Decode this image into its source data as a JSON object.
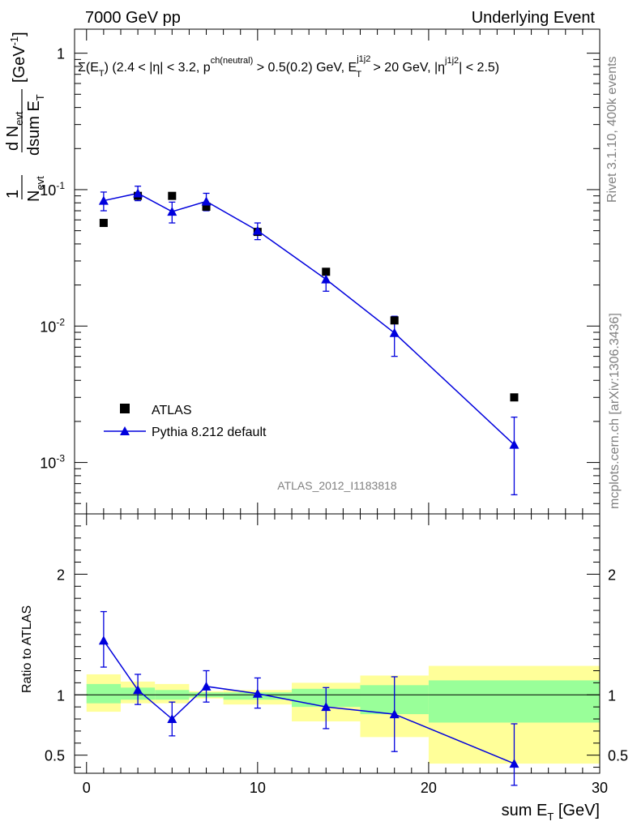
{
  "header": {
    "left": "7000 GeV pp",
    "right": "Underlying Event"
  },
  "side_text": {
    "rivet": "Rivet 3.1.10,  400k events",
    "mcplots": "mcplots.cern.ch [arXiv:1306.3436]"
  },
  "watermark": "ATLAS_2012_I1183818",
  "colors": {
    "mc_line": "#0000dd",
    "data_marker": "#000000",
    "band_outer": "#ffff99",
    "band_inner": "#99ff99"
  },
  "chart_data": [
    {
      "type": "scatter",
      "role": "main",
      "title": "Σ(E_T) (2.4 < |η| < 3.2, p_T^ch(neutral) > 0.5(0.2) GeV, E_T^j1j2 > 20 GeV, |η^j1j2| < 2.5)",
      "ylabel": "1/N_evt dN_evt/dsum E_T [GeV^-1]",
      "xlabel": "sum E_T [GeV]",
      "yscale": "log",
      "xlim": [
        -0.7,
        30
      ],
      "ylim": [
        0.00042,
        1.5
      ],
      "yticks": [
        {
          "v": 1,
          "label": "1"
        },
        {
          "v": 0.1,
          "label": "10^-1"
        },
        {
          "v": 0.01,
          "label": "10^-2"
        },
        {
          "v": 0.001,
          "label": "10^-3"
        }
      ],
      "series": [
        {
          "name": "ATLAS",
          "marker": "square",
          "x": [
            1,
            3,
            5,
            7,
            10,
            14,
            18,
            25
          ],
          "y": [
            0.057,
            0.09,
            0.09,
            0.075,
            0.049,
            0.025,
            0.011,
            0.003
          ]
        },
        {
          "name": "Pythia 8.212 default",
          "marker": "triangle",
          "x": [
            1,
            3,
            5,
            7,
            10,
            14,
            18,
            25
          ],
          "y": [
            0.083,
            0.094,
            0.069,
            0.082,
            0.05,
            0.022,
            0.0089,
            0.00135
          ],
          "y_lo": [
            0.07,
            0.083,
            0.057,
            0.07,
            0.043,
            0.018,
            0.006,
            0.00058
          ],
          "y_hi": [
            0.096,
            0.106,
            0.081,
            0.094,
            0.057,
            0.026,
            0.0118,
            0.00215
          ]
        }
      ],
      "legend": [
        "ATLAS",
        "Pythia 8.212 default"
      ],
      "legend_position": "bottom-left"
    },
    {
      "type": "line",
      "role": "ratio",
      "ylabel": "Ratio to ATLAS",
      "xlabel": "sum E_T [GeV]",
      "xlim": [
        -0.7,
        30
      ],
      "ylim": [
        0.35,
        2.5
      ],
      "xticks": [
        0,
        10,
        20,
        30
      ],
      "yticks": [
        {
          "v": 0.5,
          "label": "0.5"
        },
        {
          "v": 1,
          "label": "1"
        },
        {
          "v": 2,
          "label": "2"
        }
      ],
      "reference_line": 1,
      "bands": {
        "x_edges": [
          0,
          2,
          4,
          6,
          8,
          12,
          16,
          20,
          30
        ],
        "outer_lo": [
          0.86,
          0.93,
          0.93,
          0.97,
          0.92,
          0.78,
          0.65,
          0.43
        ],
        "outer_hi": [
          1.17,
          1.11,
          1.09,
          1.03,
          1.04,
          1.1,
          1.16,
          1.24
        ],
        "inner_lo": [
          0.93,
          0.96,
          0.96,
          0.98,
          0.96,
          0.9,
          0.84,
          0.77
        ],
        "inner_hi": [
          1.09,
          1.06,
          1.04,
          1.02,
          1.02,
          1.05,
          1.08,
          1.12
        ]
      },
      "series": [
        {
          "name": "Pythia 8.212 default",
          "x": [
            1,
            3,
            5,
            7,
            10,
            14,
            18,
            25
          ],
          "y": [
            1.45,
            1.04,
            0.8,
            1.07,
            1.01,
            0.9,
            0.84,
            0.43
          ],
          "y_lo": [
            1.23,
            0.92,
            0.66,
            0.94,
            0.89,
            0.72,
            0.53,
            0.25
          ],
          "y_hi": [
            1.69,
            1.17,
            0.94,
            1.2,
            1.14,
            1.06,
            1.15,
            0.76
          ]
        }
      ]
    }
  ]
}
